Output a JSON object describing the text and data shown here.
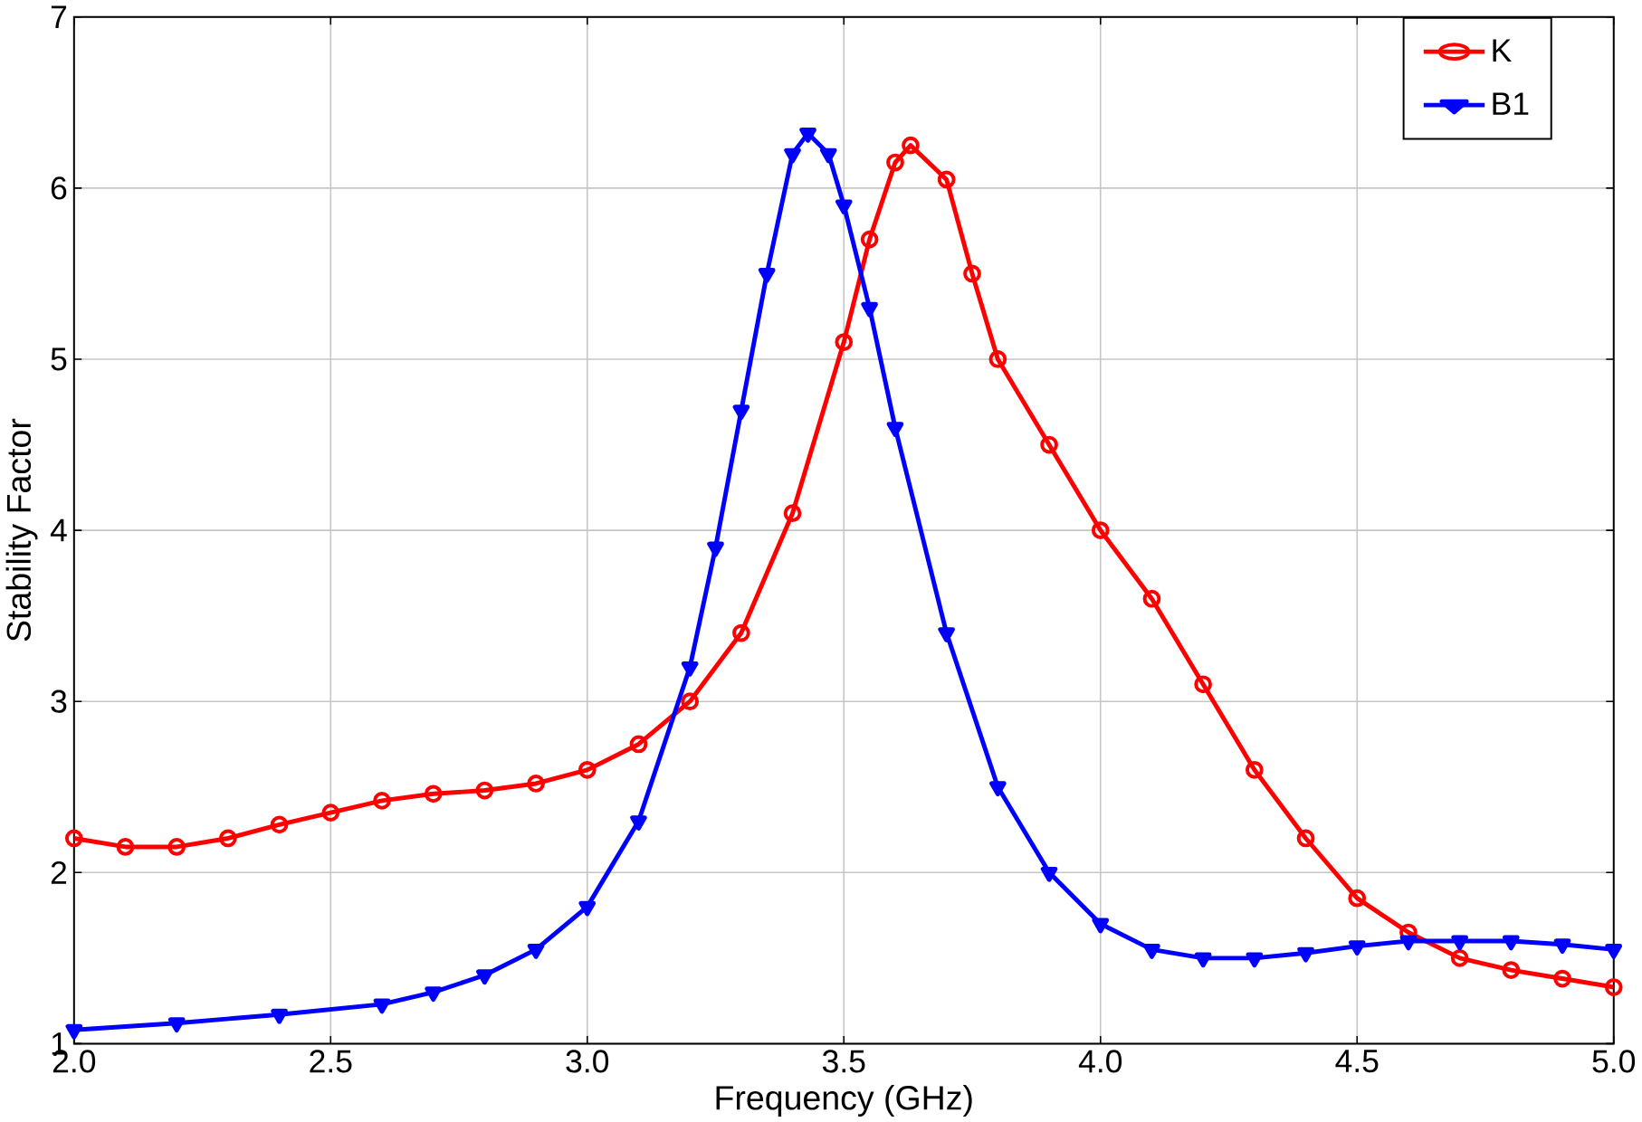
{
  "chart_data": {
    "type": "line",
    "xlabel": "Frequency (GHz)",
    "ylabel": "Stability Factor",
    "xlim": [
      2.0,
      5.0
    ],
    "ylim": [
      1,
      7
    ],
    "xticks": [
      {
        "value": 2.0,
        "label": "2.0"
      },
      {
        "value": 2.5,
        "label": "2.5"
      },
      {
        "value": 3.0,
        "label": "3.0"
      },
      {
        "value": 3.5,
        "label": "3.5"
      },
      {
        "value": 4.0,
        "label": "4.0"
      },
      {
        "value": 4.5,
        "label": "4.5"
      },
      {
        "value": 5.0,
        "label": "5.0"
      }
    ],
    "yticks": [
      1,
      2,
      3,
      4,
      5,
      6,
      7
    ],
    "grid": true,
    "legend": "top right",
    "series": [
      {
        "name": "K",
        "color": "#ff0000",
        "marker": "circle",
        "x": [
          2.0,
          2.1,
          2.2,
          2.3,
          2.4,
          2.5,
          2.6,
          2.7,
          2.8,
          2.9,
          3.0,
          3.1,
          3.2,
          3.3,
          3.4,
          3.5,
          3.55,
          3.6,
          3.63,
          3.7,
          3.75,
          3.8,
          3.9,
          4.0,
          4.1,
          4.2,
          4.3,
          4.4,
          4.5,
          4.6,
          4.7,
          4.8,
          4.9,
          5.0
        ],
        "values": [
          2.2,
          2.15,
          2.15,
          2.2,
          2.28,
          2.35,
          2.42,
          2.46,
          2.48,
          2.52,
          2.6,
          2.75,
          3.0,
          3.4,
          4.1,
          5.1,
          5.7,
          6.15,
          6.25,
          6.05,
          5.5,
          5.0,
          4.5,
          4.0,
          3.6,
          3.1,
          2.6,
          2.2,
          1.85,
          1.65,
          1.5,
          1.43,
          1.38,
          1.33
        ]
      },
      {
        "name": "B1",
        "color": "#0000ff",
        "marker": "triangle",
        "x": [
          2.0,
          2.2,
          2.4,
          2.6,
          2.7,
          2.8,
          2.9,
          3.0,
          3.1,
          3.2,
          3.25,
          3.3,
          3.35,
          3.4,
          3.43,
          3.47,
          3.5,
          3.55,
          3.6,
          3.7,
          3.8,
          3.9,
          4.0,
          4.1,
          4.2,
          4.3,
          4.4,
          4.5,
          4.6,
          4.7,
          4.8,
          4.9,
          5.0
        ],
        "values": [
          1.08,
          1.12,
          1.17,
          1.23,
          1.3,
          1.4,
          1.55,
          1.8,
          2.3,
          3.2,
          3.9,
          4.7,
          5.5,
          6.2,
          6.32,
          6.2,
          5.9,
          5.3,
          4.6,
          3.4,
          2.5,
          2.0,
          1.7,
          1.55,
          1.5,
          1.5,
          1.53,
          1.57,
          1.6,
          1.6,
          1.6,
          1.58,
          1.55
        ]
      }
    ]
  }
}
